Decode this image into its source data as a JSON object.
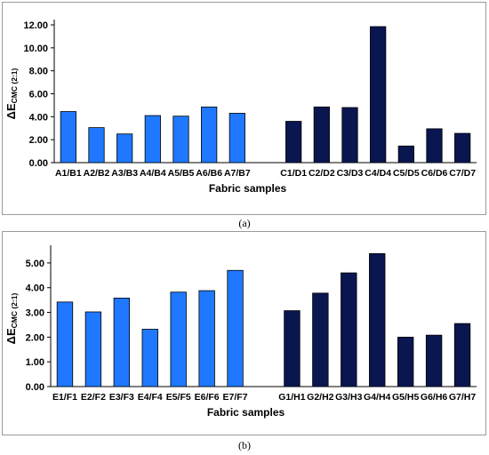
{
  "chart_data": [
    {
      "type": "bar",
      "caption": "(a)",
      "ylabel_main": "ΔE",
      "ylabel_sub": "CMC (2:1)",
      "xlabel": "Fabric samples",
      "ylim": [
        0,
        12
      ],
      "yticks": [
        "0.00",
        "2.00",
        "4.00",
        "6.00",
        "8.00",
        "10.00",
        "12.00"
      ],
      "groups": [
        {
          "color": "#1f78ff",
          "categories": [
            "A1/B1",
            "A2/B2",
            "A3/B3",
            "A4/B4",
            "A5/B5",
            "A6/B6",
            "A7/B7"
          ],
          "values": [
            4.45,
            3.05,
            2.5,
            4.1,
            4.05,
            4.85,
            4.3
          ]
        },
        {
          "color": "#0a1650",
          "categories": [
            "C1/D1",
            "C2/D2",
            "C3/D3",
            "C4/D4",
            "C5/D5",
            "C6/D6",
            "C7/D7"
          ],
          "values": [
            3.6,
            4.85,
            4.8,
            11.85,
            1.45,
            2.95,
            2.55
          ]
        }
      ]
    },
    {
      "type": "bar",
      "caption": "(b)",
      "ylabel_main": "ΔE",
      "ylabel_sub": "CMC (2:1)",
      "xlabel": "Fabric samples",
      "ylim": [
        0,
        5.5
      ],
      "yticks": [
        "0.00",
        "1.00",
        "2.00",
        "3.00",
        "4.00",
        "5.00"
      ],
      "groups": [
        {
          "color": "#1f78ff",
          "categories": [
            "E1/F1",
            "E2/F2",
            "E3/F3",
            "E4/F4",
            "E5/F5",
            "E6/F6",
            "E7/F7"
          ],
          "values": [
            3.42,
            3.02,
            3.58,
            2.32,
            3.82,
            3.88,
            4.7
          ]
        },
        {
          "color": "#0a1650",
          "categories": [
            "G1/H1",
            "G2/H2",
            "G3/H3",
            "G4/H4",
            "G5/H5",
            "G6/H6",
            "G7/H7"
          ],
          "values": [
            3.07,
            3.78,
            4.6,
            5.38,
            2.0,
            2.08,
            2.55
          ]
        }
      ]
    }
  ]
}
